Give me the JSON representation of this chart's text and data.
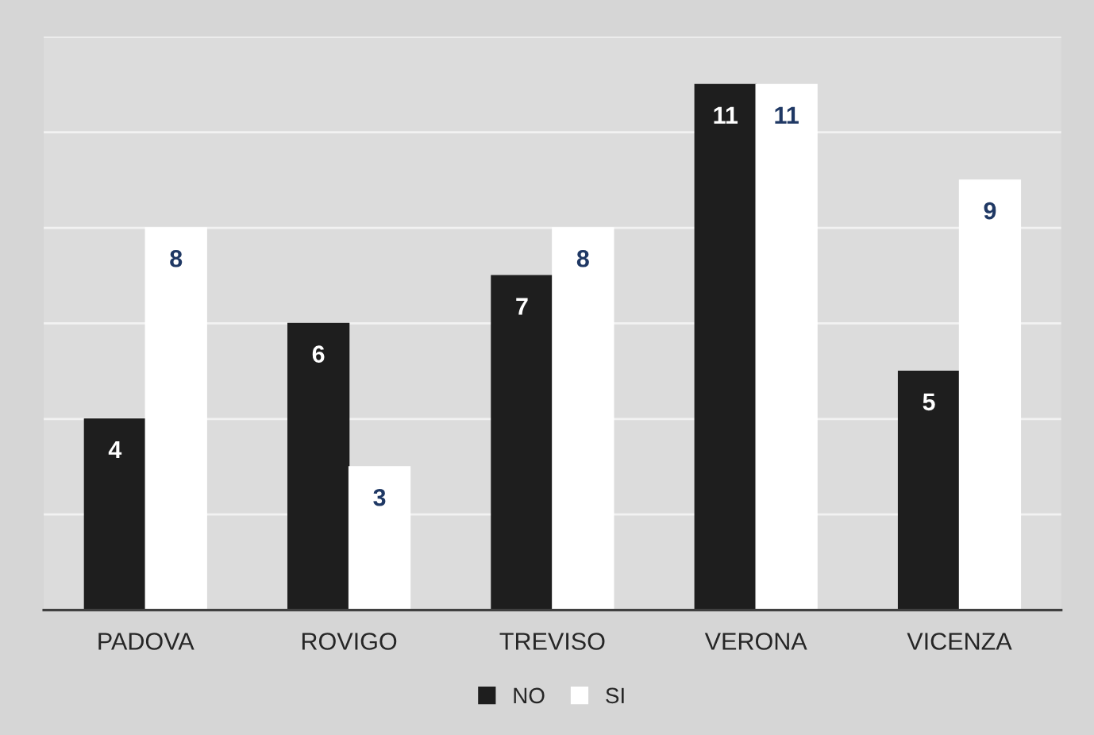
{
  "chart_data": {
    "type": "bar",
    "categories": [
      "PADOVA",
      "ROVIGO",
      "TREVISO",
      "VERONA",
      "VICENZA"
    ],
    "series": [
      {
        "name": "NO",
        "color": "#1e1e1e",
        "values": [
          4,
          6,
          7,
          11,
          5
        ]
      },
      {
        "name": "SI",
        "color": "#ffffff",
        "values": [
          8,
          3,
          8,
          11,
          9
        ]
      }
    ],
    "ylim": [
      0,
      12
    ],
    "yticks": [
      {
        "value": 0,
        "label": null
      },
      {
        "value": 2,
        "label": null
      },
      {
        "value": 4,
        "label": null
      },
      {
        "value": 6,
        "label": null
      },
      {
        "value": 8,
        "label": null
      },
      {
        "value": 10,
        "label": null
      },
      {
        "value": 12,
        "label": null
      }
    ],
    "tick_labels": "x",
    "grid": "y",
    "legend": "bottom",
    "data_labels": true
  }
}
